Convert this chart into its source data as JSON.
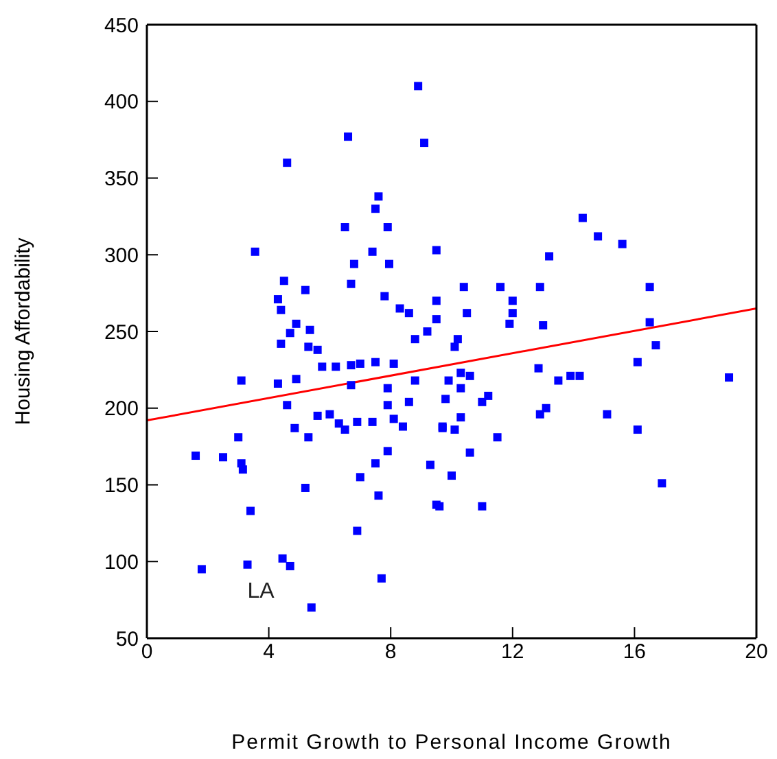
{
  "chart_data": {
    "type": "scatter",
    "xlabel": "Permit Growth to Personal Income Growth",
    "ylabel": "Housing Affordability",
    "xlim": [
      0,
      20
    ],
    "ylim": [
      50,
      450
    ],
    "xticks": [
      0,
      4,
      8,
      12,
      16,
      20
    ],
    "yticks": [
      50,
      100,
      150,
      200,
      250,
      300,
      350,
      400,
      450
    ],
    "annotations": [
      {
        "text": "LA",
        "x": 3.3,
        "y": 98
      }
    ],
    "series": [
      {
        "marker": "square",
        "color": "#0000ff",
        "x": [
          8.9,
          6.6,
          9.1,
          4.6,
          7.6,
          7.5,
          6.5,
          7.9,
          3.55,
          7.4,
          9.5,
          6.8,
          7.95,
          6.7,
          4.5,
          5.2,
          4.3,
          7.8,
          8.3,
          8.6,
          9.5,
          9.5,
          9.2,
          4.4,
          5.35,
          4.9,
          5.3,
          5.6,
          14.3,
          14.8,
          15.6,
          13.2,
          11.6,
          10.4,
          12.0,
          12.9,
          16.5,
          12.0,
          11.9,
          10.5,
          13.0,
          16.5,
          10.2,
          10.1,
          16.7,
          16.1,
          19.1,
          10.3,
          10.6,
          12.85,
          13.5,
          13.9,
          14.2,
          9.9,
          10.3,
          9.8,
          11.2,
          11.0,
          10.3,
          12.9,
          13.1,
          15.1,
          9.7,
          10.1,
          11.5,
          16.1,
          10.6,
          10.0,
          16.9,
          9.6,
          11.0,
          3.1,
          4.3,
          4.6,
          4.85,
          5.3,
          3.0,
          1.6,
          2.5,
          3.1,
          3.15,
          5.2,
          3.4,
          6.9,
          4.45,
          4.7,
          3.3,
          1.8,
          7.7,
          5.4,
          5.75,
          6.2,
          6.7,
          7.0,
          7.5,
          8.1,
          8.8,
          8.8,
          6.7,
          7.9,
          8.6,
          7.9,
          5.6,
          6.0,
          6.3,
          6.5,
          6.9,
          7.4,
          8.1,
          8.4,
          9.7,
          7.9,
          7.5,
          7.0,
          9.3,
          9.5,
          7.6,
          4.9,
          4.7,
          4.4
        ],
        "values": [
          410,
          377,
          373,
          360,
          338,
          330,
          318,
          318,
          302,
          302,
          303,
          294,
          294,
          281,
          283,
          277,
          271,
          273,
          265,
          262,
          258,
          270,
          250,
          264,
          251,
          219,
          240,
          238,
          324,
          312,
          307,
          299,
          279,
          279,
          270,
          279,
          279,
          262,
          255,
          262,
          254,
          256,
          245,
          240,
          241,
          230,
          220,
          223,
          221,
          226,
          218,
          221,
          221,
          218,
          213,
          206,
          208,
          204,
          194,
          196,
          200,
          196,
          187,
          186,
          181,
          186,
          171,
          156,
          151,
          136,
          136,
          218,
          216,
          202,
          187,
          181,
          181,
          169,
          168,
          164,
          160,
          148,
          133,
          120,
          102,
          97,
          98,
          95,
          89,
          70,
          227,
          227,
          228,
          229,
          230,
          229,
          245,
          218,
          215,
          213,
          204,
          202,
          195,
          196,
          190,
          186,
          191,
          191,
          193,
          188,
          188,
          172,
          164,
          155,
          163,
          137,
          143,
          255,
          249,
          242
        ]
      },
      {
        "type": "line",
        "color": "#ff0000",
        "x": [
          0,
          20
        ],
        "values": [
          192,
          265
        ]
      }
    ]
  }
}
